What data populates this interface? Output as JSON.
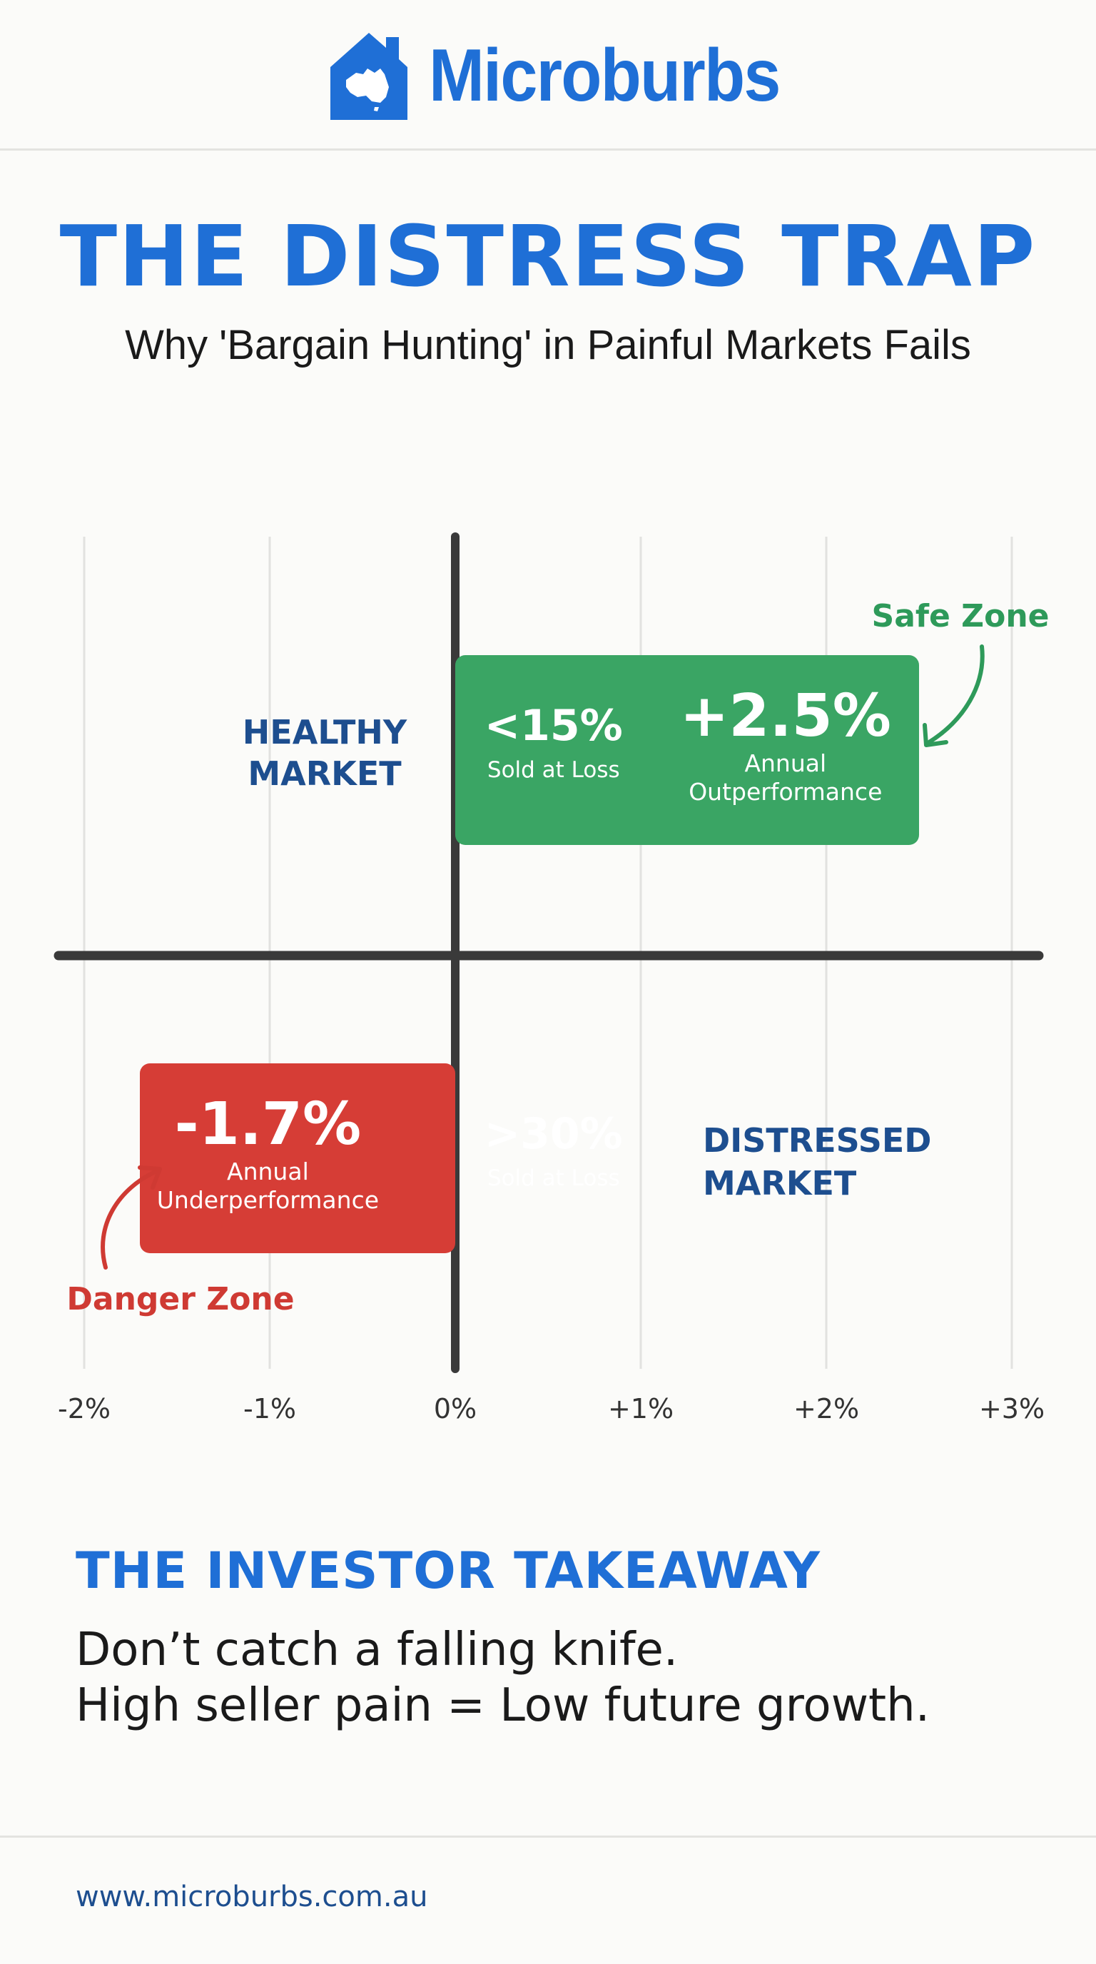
{
  "brand": {
    "name": "Microburbs",
    "logo_icon": "house-australia-icon",
    "color": "#1f6fd6"
  },
  "title": "THE DISTRESS TRAP",
  "subtitle": "Why 'Bargain Hunting' in Painful Markets Fails",
  "chart_data": {
    "type": "bar",
    "x_ticks": [
      "-2%",
      "-1%",
      "0%",
      "+1%",
      "+2%",
      "+3%"
    ],
    "xlim": [
      -2,
      3
    ],
    "categories": [
      "HEALTHY MARKET",
      "DISTRESSED MARKET"
    ],
    "bars": [
      {
        "category": "HEALTHY MARKET",
        "value": 2.5,
        "color": "#3aa564",
        "main_label": "+2.5%",
        "main_sub": [
          "Annual",
          "Outperformance"
        ],
        "stat_label": "<15%",
        "stat_sub": "Sold at Loss",
        "annotation": "Safe Zone",
        "annotation_color": "#2e9a5a"
      },
      {
        "category": "DISTRESSED MARKET",
        "value": -1.7,
        "color": "#d63d36",
        "main_label": "-1.7%",
        "main_sub": [
          "Annual",
          "Underperformance"
        ],
        "stat_label": ">30%",
        "stat_sub": "Sold at Loss",
        "annotation": "Danger Zone",
        "annotation_color": "#cf3a33"
      }
    ],
    "category_label_color": "#1d4e8f",
    "grid": true
  },
  "takeaway": {
    "heading": "THE INVESTOR TAKEAWAY",
    "line1": "Don’t catch a falling knife.",
    "line2": "High seller pain = Low future growth."
  },
  "footer": {
    "url": "www.microburbs.com.au"
  }
}
